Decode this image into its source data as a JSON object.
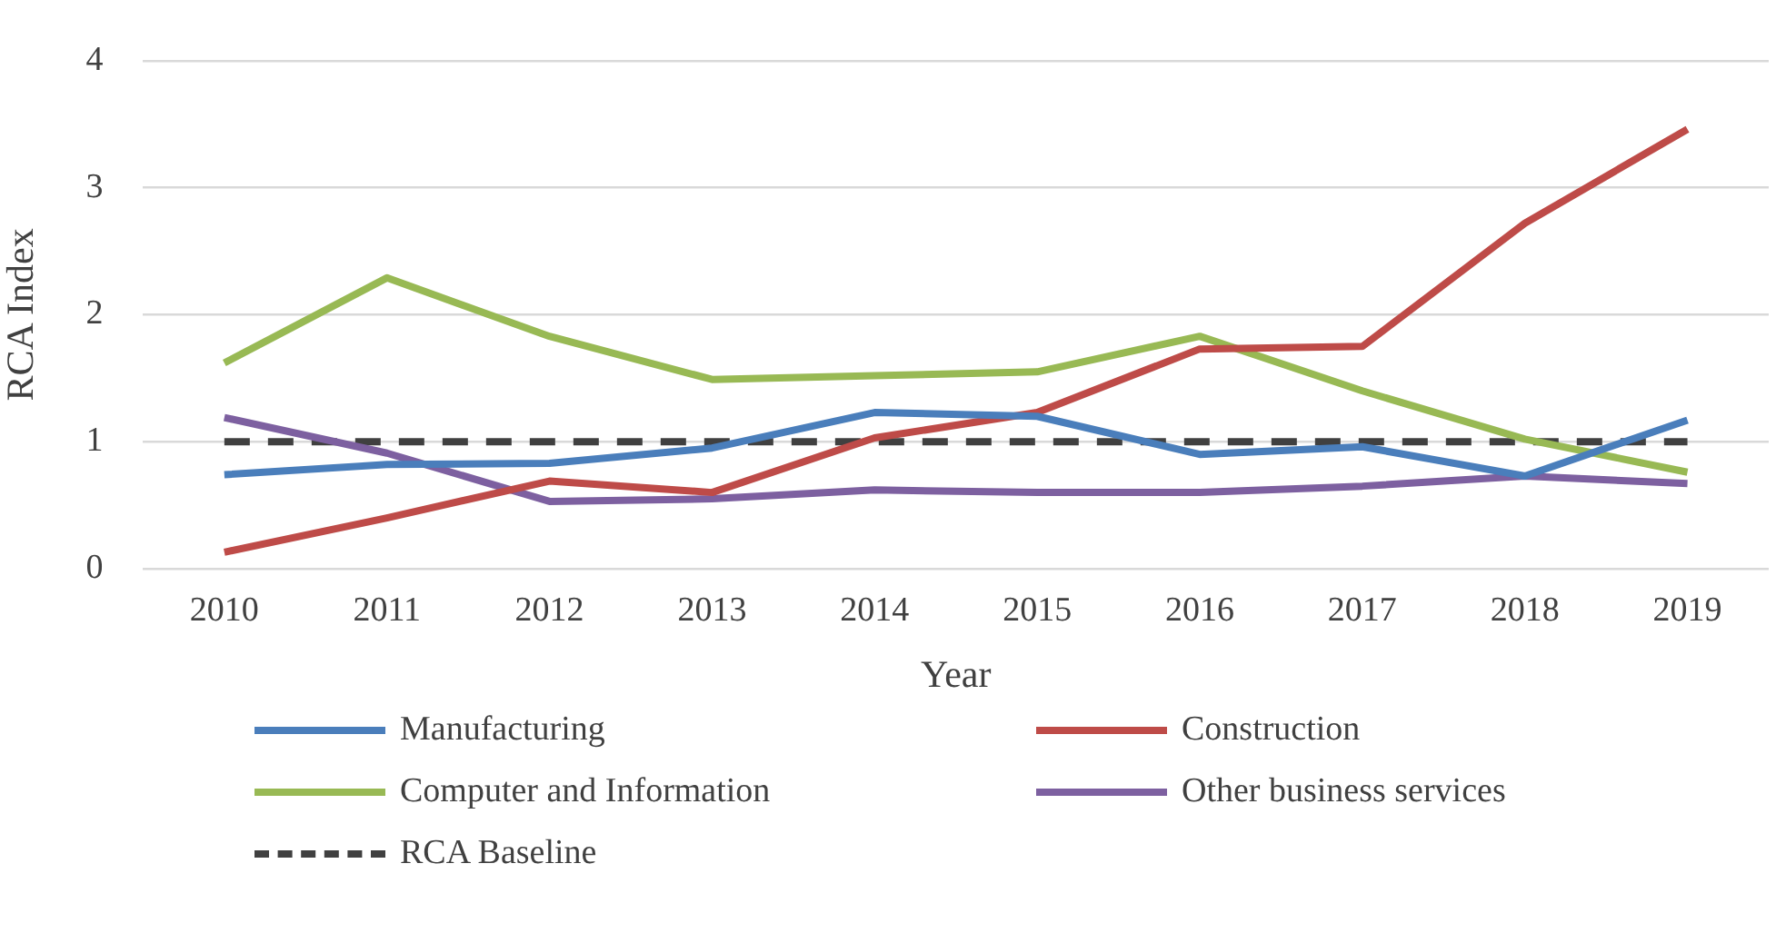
{
  "chart_data": {
    "type": "line",
    "xlabel": "Year",
    "ylabel": "RCA Index",
    "categories": [
      "2010",
      "2011",
      "2012",
      "2013",
      "2014",
      "2015",
      "2016",
      "2017",
      "2018",
      "2019"
    ],
    "series": [
      {
        "name": "Manufacturing",
        "color": "#4a7ebb",
        "values": [
          0.74,
          0.82,
          0.83,
          0.95,
          1.23,
          1.2,
          0.9,
          0.96,
          0.73,
          1.17
        ]
      },
      {
        "name": "Construction",
        "color": "#be4b48",
        "values": [
          0.13,
          0.4,
          0.69,
          0.6,
          1.03,
          1.23,
          1.73,
          1.75,
          2.72,
          3.46
        ]
      },
      {
        "name": "Computer and Information",
        "color": "#98b954",
        "values": [
          1.62,
          2.29,
          1.83,
          1.49,
          1.52,
          1.55,
          1.83,
          1.4,
          1.02,
          0.76
        ]
      },
      {
        "name": "Other business services",
        "color": "#7d60a0",
        "values": [
          1.19,
          0.91,
          0.53,
          0.55,
          0.62,
          0.6,
          0.6,
          0.65,
          0.73,
          0.67
        ]
      },
      {
        "name": "RCA Baseline",
        "color": "#404040",
        "line_style": "dashed",
        "values": [
          1,
          1,
          1,
          1,
          1,
          1,
          1,
          1,
          1,
          1
        ]
      }
    ],
    "ylim": [
      0,
      4
    ],
    "yticks": [
      0,
      1,
      2,
      3,
      4
    ],
    "grid": "y",
    "legend": "bottom",
    "marker": "none",
    "line_style": "solid"
  }
}
